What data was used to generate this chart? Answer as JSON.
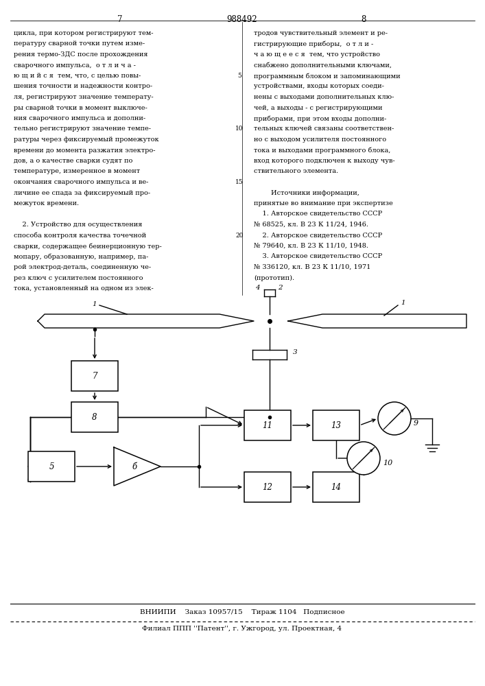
{
  "page_number_left": "7",
  "page_number_center": "988492",
  "page_number_right": "8",
  "left_column_text": [
    "цикла, при котором регистрируют тем-",
    "пературу сварной точки путем изме-",
    "рения термо-ЗДС после прохождения",
    "сварочного импульса,  о т л и ч а -",
    "ю щ и й с я  тем, что, с целью повы-",
    "шения точности и надежности контро-",
    "ля, регистрируют значение температу-",
    "ры сварной точки в момент выключе-",
    "ния сварочного импульса и дополни-",
    "тельно регистрируют значение темпе-",
    "ратуры через фиксируемый промежуток",
    "времени до момента разжатия электро-",
    "дов, а о качестве сварки судят по",
    "температуре, измеренное в момент",
    "окончания сварочного импульса и ве-",
    "личине ее спада за фиксируемый про-",
    "межуток времени.",
    "",
    "    2. Устройство для осуществления",
    "способа контроля качества точечной",
    "сварки, содержащее беинерционную тер-",
    "мопару, образованную, например, па-",
    "рой электрод-деталь, соединенную че-",
    "рез ключ с усилителем постоянного",
    "тока, установленный на одном из элек-"
  ],
  "right_column_text": [
    "тродов чувствительный элемент и ре-",
    "гистрирующие приборы,  о т л и -",
    "ч а ю щ е е с я  тем, что устройство",
    "снабжено дополнительными ключами,",
    "программным блоком и запоминающими",
    "устройствами, входы которых соеди-",
    "нены с выходами дополнительных клю-",
    "чей, а выходы - с регистрирующими",
    "приборами, при этом входы дополни-",
    "тельных ключей связаны соответствен-",
    "но с выходом усилителя постоянного",
    "тока и выходами программного блока,",
    "вход которого подключен к выходу чув-",
    "ствительного элемента.",
    "",
    "        Источники информации,",
    "принятые во внимание при экспертизе",
    "    1. Авторское свидетельство СССР",
    "№ 68525, кл. В 23 К 11/24, 1946.",
    "    2. Авторское свидетельство СССР",
    "№ 79640, кл. В 23 К 11/10, 1948.",
    "    3. Авторское свидетельство СССР",
    "№ 336120, кл. В 23 К 11/10, 1971",
    "(прототип)."
  ],
  "footer_line1": "ВНИИПИ    Заказ 10957/15    Тираж 1104   Подписное",
  "footer_line2": "Филиал ППП ''Патент'', г. Ужгород, ул. Проектная, 4",
  "bg_color": "#ffffff",
  "text_color": "#000000"
}
